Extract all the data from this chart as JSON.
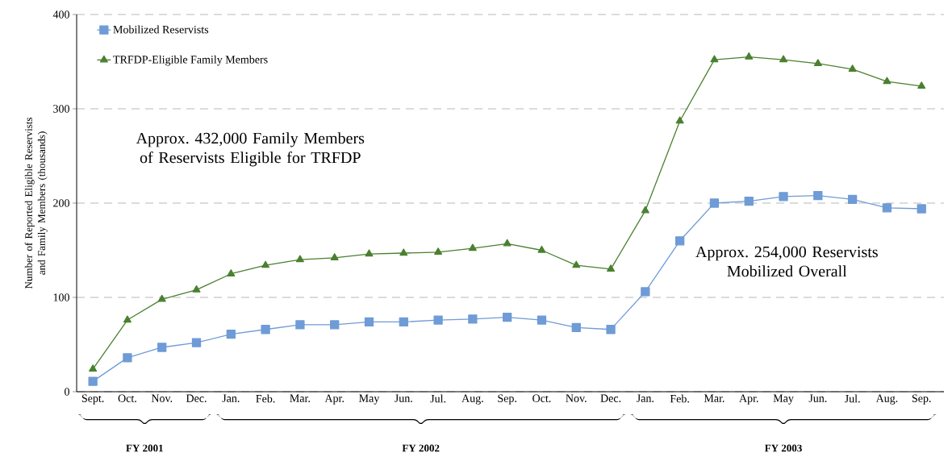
{
  "chart_data": {
    "type": "line",
    "ylabel": "Number of Reported Eligible Reservists and Family Members (thousands)",
    "categories": [
      "Sept.",
      "Oct.",
      "Nov.",
      "Dec.",
      "Jan.",
      "Feb.",
      "Mar.",
      "Apr.",
      "May",
      "Jun.",
      "Jul.",
      "Aug.",
      "Sep.",
      "Oct.",
      "Nov.",
      "Dec.",
      "Jan.",
      "Feb.",
      "Mar.",
      "Apr.",
      "May",
      "Jun.",
      "Jul.",
      "Aug.",
      "Sep."
    ],
    "series": [
      {
        "name": "Mobilized Reservists",
        "color": "#6f9bd6",
        "marker": "square",
        "values": [
          11,
          36,
          47,
          52,
          61,
          66,
          71,
          71,
          74,
          74,
          76,
          77,
          79,
          76,
          68,
          66,
          106,
          160,
          200,
          202,
          207,
          208,
          204,
          195,
          194
        ]
      },
      {
        "name": "TRFDP-Eligible Family Members",
        "color": "#4a8030",
        "marker": "triangle",
        "values": [
          24,
          76,
          98,
          108,
          125,
          134,
          140,
          142,
          146,
          147,
          148,
          152,
          157,
          150,
          134,
          130,
          192,
          287,
          352,
          355,
          352,
          348,
          342,
          329,
          324
        ]
      }
    ],
    "ylim": [
      0,
      400
    ],
    "yticks": [
      0,
      100,
      200,
      300,
      400
    ],
    "grid": "y",
    "legend": "top left",
    "line_style": "solid",
    "annotations": [
      "Approx. 432,000 Family Members of Reservists Eligible for TRFDP",
      "Approx. 254,000 Reservists Mobilized Overall",
      "FY 2001",
      "FY 2002",
      "FY 2003"
    ]
  }
}
